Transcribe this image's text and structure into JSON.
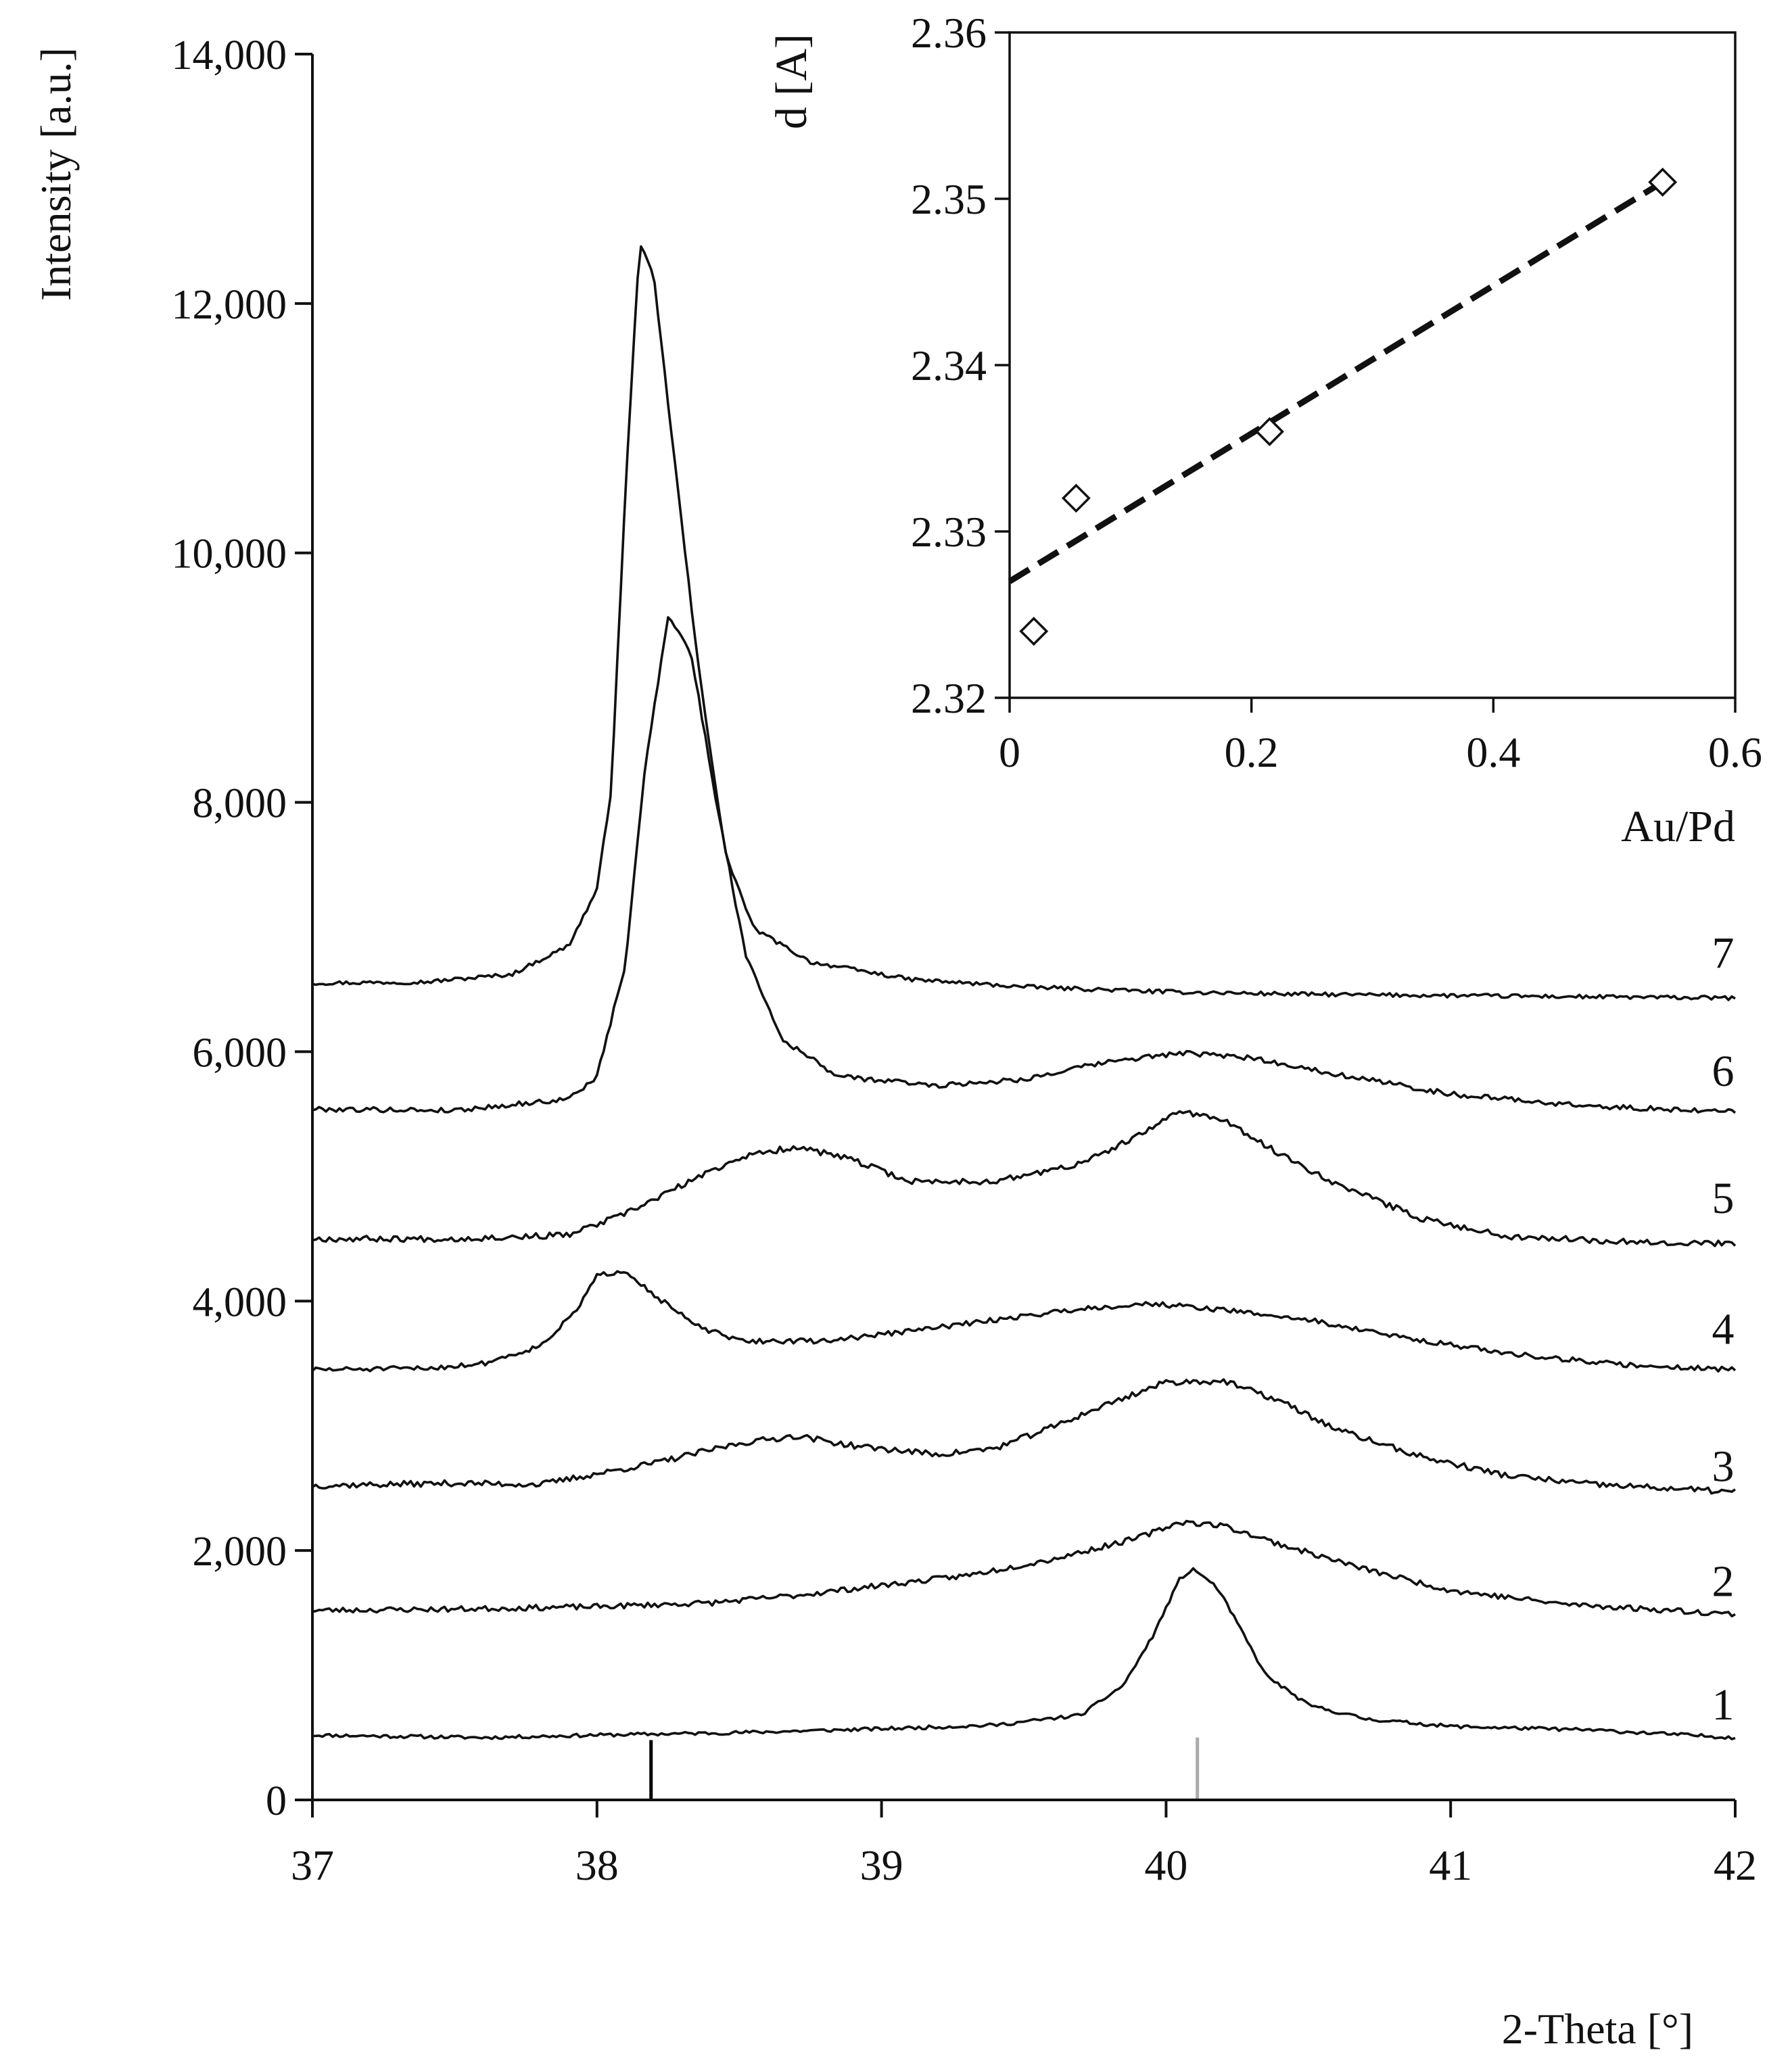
{
  "chart_data": [
    {
      "id": "main",
      "type": "line",
      "title": "",
      "xlabel": "2-Theta [°]",
      "ylabel": "Intensity  [a.u.]",
      "xlim": [
        37,
        42
      ],
      "ylim": [
        0,
        14000
      ],
      "x_ticks": [
        {
          "value": 37,
          "label": "37"
        },
        {
          "value": 38,
          "label": "38"
        },
        {
          "value": 39,
          "label": "39"
        },
        {
          "value": 40,
          "label": "40"
        },
        {
          "value": 41,
          "label": "41"
        },
        {
          "value": 42,
          "label": "42"
        }
      ],
      "y_ticks": [
        {
          "value": 0,
          "label": "0"
        },
        {
          "value": 2000,
          "label": "2,000"
        },
        {
          "value": 4000,
          "label": "4,000"
        },
        {
          "value": 6000,
          "label": "6,000"
        },
        {
          "value": 8000,
          "label": "8,000"
        },
        {
          "value": 10000,
          "label": "10,000"
        },
        {
          "value": 12000,
          "label": "12,000"
        },
        {
          "value": 14000,
          "label": "14,000"
        }
      ],
      "reference_lines": [
        {
          "name": "Au reference",
          "x": 38.19,
          "y_top": 480,
          "color": "#000000"
        },
        {
          "name": "Pd reference",
          "x": 40.11,
          "y_top": 500,
          "color": "#aaaaaa"
        }
      ],
      "series": [
        {
          "name": "1",
          "label": "1",
          "label_y": 570,
          "noise": 14,
          "seed": 11,
          "points": [
            [
              37.0,
              520
            ],
            [
              37.3,
              510
            ],
            [
              37.6,
              500
            ],
            [
              38.0,
              520
            ],
            [
              38.5,
              540
            ],
            [
              39.0,
              570
            ],
            [
              39.4,
              600
            ],
            [
              39.7,
              680
            ],
            [
              39.85,
              920
            ],
            [
              39.95,
              1300
            ],
            [
              40.05,
              1780
            ],
            [
              40.1,
              1850
            ],
            [
              40.18,
              1700
            ],
            [
              40.25,
              1420
            ],
            [
              40.35,
              1000
            ],
            [
              40.5,
              760
            ],
            [
              40.7,
              650
            ],
            [
              41.0,
              590
            ],
            [
              41.5,
              560
            ],
            [
              42.0,
              500
            ]
          ]
        },
        {
          "name": "2",
          "label": "2",
          "label_y": 1560,
          "noise": 22,
          "seed": 23,
          "points": [
            [
              37.0,
              1520
            ],
            [
              37.5,
              1530
            ],
            [
              38.0,
              1550
            ],
            [
              38.4,
              1580
            ],
            [
              38.7,
              1640
            ],
            [
              39.0,
              1720
            ],
            [
              39.3,
              1800
            ],
            [
              39.6,
              1930
            ],
            [
              39.9,
              2100
            ],
            [
              40.05,
              2230
            ],
            [
              40.2,
              2200
            ],
            [
              40.4,
              2050
            ],
            [
              40.7,
              1850
            ],
            [
              41.0,
              1680
            ],
            [
              41.4,
              1570
            ],
            [
              42.0,
              1490
            ]
          ]
        },
        {
          "name": "3",
          "label": "3",
          "label_y": 2480,
          "noise": 24,
          "seed": 37,
          "points": [
            [
              37.0,
              2520
            ],
            [
              37.5,
              2540
            ],
            [
              37.8,
              2530
            ],
            [
              38.2,
              2700
            ],
            [
              38.5,
              2860
            ],
            [
              38.7,
              2920
            ],
            [
              38.9,
              2840
            ],
            [
              39.2,
              2770
            ],
            [
              39.4,
              2820
            ],
            [
              39.6,
              2990
            ],
            [
              39.8,
              3180
            ],
            [
              40.0,
              3350
            ],
            [
              40.2,
              3360
            ],
            [
              40.4,
              3200
            ],
            [
              40.6,
              2970
            ],
            [
              40.9,
              2750
            ],
            [
              41.2,
              2600
            ],
            [
              41.5,
              2530
            ],
            [
              42.0,
              2470
            ]
          ]
        },
        {
          "name": "4",
          "label": "4",
          "label_y": 3580,
          "noise": 20,
          "seed": 51,
          "points": [
            [
              37.0,
              3450
            ],
            [
              37.4,
              3460
            ],
            [
              37.6,
              3500
            ],
            [
              37.8,
              3640
            ],
            [
              37.92,
              3900
            ],
            [
              38.0,
              4200
            ],
            [
              38.1,
              4250
            ],
            [
              38.2,
              4050
            ],
            [
              38.35,
              3800
            ],
            [
              38.5,
              3680
            ],
            [
              38.8,
              3680
            ],
            [
              39.1,
              3760
            ],
            [
              39.4,
              3850
            ],
            [
              39.7,
              3940
            ],
            [
              39.95,
              3980
            ],
            [
              40.2,
              3930
            ],
            [
              40.5,
              3850
            ],
            [
              40.8,
              3720
            ],
            [
              41.2,
              3580
            ],
            [
              41.6,
              3490
            ],
            [
              42.0,
              3450
            ]
          ]
        },
        {
          "name": "5",
          "label": "5",
          "label_y": 4630,
          "noise": 24,
          "seed": 67,
          "points": [
            [
              37.0,
              4500
            ],
            [
              37.5,
              4500
            ],
            [
              37.9,
              4530
            ],
            [
              38.1,
              4700
            ],
            [
              38.3,
              4930
            ],
            [
              38.5,
              5150
            ],
            [
              38.7,
              5240
            ],
            [
              38.9,
              5130
            ],
            [
              39.1,
              4960
            ],
            [
              39.4,
              4960
            ],
            [
              39.7,
              5100
            ],
            [
              39.9,
              5320
            ],
            [
              40.05,
              5530
            ],
            [
              40.2,
              5450
            ],
            [
              40.4,
              5180
            ],
            [
              40.6,
              4940
            ],
            [
              40.9,
              4660
            ],
            [
              41.2,
              4520
            ],
            [
              41.6,
              4480
            ],
            [
              42.0,
              4460
            ]
          ]
        },
        {
          "name": "6",
          "label": "6",
          "label_y": 5650,
          "noise": 20,
          "seed": 79,
          "points": [
            [
              37.0,
              5540
            ],
            [
              37.5,
              5530
            ],
            [
              37.9,
              5620
            ],
            [
              38.0,
              5800
            ],
            [
              38.1,
              6700
            ],
            [
              38.17,
              8300
            ],
            [
              38.25,
              9500
            ],
            [
              38.33,
              9200
            ],
            [
              38.42,
              8000
            ],
            [
              38.52,
              6800
            ],
            [
              38.65,
              6100
            ],
            [
              38.85,
              5800
            ],
            [
              39.2,
              5730
            ],
            [
              39.5,
              5780
            ],
            [
              39.8,
              5920
            ],
            [
              40.05,
              5990
            ],
            [
              40.3,
              5950
            ],
            [
              40.6,
              5820
            ],
            [
              41.0,
              5660
            ],
            [
              41.5,
              5560
            ],
            [
              42.0,
              5520
            ]
          ]
        },
        {
          "name": "7",
          "label": "7",
          "label_y": 6600,
          "noise": 16,
          "seed": 97,
          "points": [
            [
              37.0,
              6550
            ],
            [
              37.4,
              6560
            ],
            [
              37.7,
              6620
            ],
            [
              37.9,
              6850
            ],
            [
              38.0,
              7300
            ],
            [
              38.05,
              8100
            ],
            [
              38.1,
              10500
            ],
            [
              38.15,
              12500
            ],
            [
              38.2,
              12200
            ],
            [
              38.27,
              10800
            ],
            [
              38.35,
              9200
            ],
            [
              38.45,
              7600
            ],
            [
              38.55,
              6990
            ],
            [
              38.75,
              6720
            ],
            [
              39.1,
              6580
            ],
            [
              39.5,
              6520
            ],
            [
              40.0,
              6480
            ],
            [
              40.5,
              6460
            ],
            [
              41.0,
              6450
            ],
            [
              42.0,
              6430
            ]
          ]
        }
      ]
    },
    {
      "id": "inset",
      "type": "scatter",
      "title": "",
      "xlabel": "Au/Pd",
      "ylabel": "d [A]",
      "xlim": [
        0,
        0.6
      ],
      "ylim": [
        2.32,
        2.36
      ],
      "x_ticks": [
        {
          "value": 0,
          "label": "0"
        },
        {
          "value": 0.2,
          "label": "0.2"
        },
        {
          "value": 0.4,
          "label": "0.4"
        },
        {
          "value": 0.6,
          "label": "0.6"
        }
      ],
      "y_ticks": [
        {
          "value": 2.32,
          "label": "2.32"
        },
        {
          "value": 2.33,
          "label": "2.33"
        },
        {
          "value": 2.34,
          "label": "2.34"
        },
        {
          "value": 2.35,
          "label": "2.35"
        },
        {
          "value": 2.36,
          "label": "2.36"
        }
      ],
      "points": [
        {
          "x": 0.02,
          "y": 2.324
        },
        {
          "x": 0.055,
          "y": 2.332
        },
        {
          "x": 0.215,
          "y": 2.336
        },
        {
          "x": 0.54,
          "y": 2.351
        }
      ],
      "trendline": {
        "style": "dashed",
        "from": [
          0.0,
          2.327
        ],
        "to": [
          0.54,
          2.351
        ]
      }
    }
  ]
}
